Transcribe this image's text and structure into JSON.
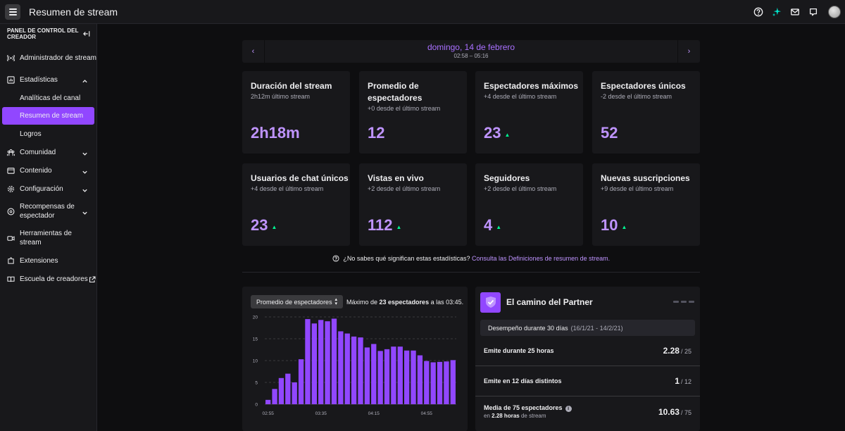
{
  "topbar": {
    "title": "Resumen de stream"
  },
  "sidebar": {
    "panel_title": "PANEL DE CONTROL DEL CREADOR",
    "items": [
      {
        "label": "Administrador de stream",
        "icon": "broadcast-icon"
      },
      {
        "label": "Estadísticas",
        "icon": "stats-icon",
        "expanded": true
      },
      {
        "label": "Analíticas del canal"
      },
      {
        "label": "Resumen de stream",
        "active": true
      },
      {
        "label": "Logros"
      },
      {
        "label": "Comunidad",
        "icon": "community-icon"
      },
      {
        "label": "Contenido",
        "icon": "content-icon"
      },
      {
        "label": "Configuración",
        "icon": "gear-icon"
      },
      {
        "label": "Recompensas de espectador",
        "icon": "rewards-icon"
      },
      {
        "label": "Herramientas de stream",
        "icon": "camera-icon"
      },
      {
        "label": "Extensiones",
        "icon": "puzzle-icon"
      },
      {
        "label": "Escuela de creadores",
        "icon": "book-icon"
      }
    ]
  },
  "date_nav": {
    "date": "domingo, 14 de febrero",
    "range": "02:58 – 05:16"
  },
  "cards": [
    {
      "title": "Duración del stream",
      "sub": "2h12m último stream",
      "value": "2h18m",
      "up": false
    },
    {
      "title": "Promedio de espectadores",
      "sub": "+0 desde el último stream",
      "value": "12",
      "up": false
    },
    {
      "title": "Espectadores máximos",
      "sub": "+4 desde el último stream",
      "value": "23",
      "up": true
    },
    {
      "title": "Espectadores únicos",
      "sub": "-2 desde el último stream",
      "value": "52",
      "up": false
    },
    {
      "title": "Usuarios de chat únicos",
      "sub": "+4 desde el último stream",
      "value": "23",
      "up": true
    },
    {
      "title": "Vistas en vivo",
      "sub": "+2 desde el último stream",
      "value": "112",
      "up": true
    },
    {
      "title": "Seguidores",
      "sub": "+2 desde el último stream",
      "value": "4",
      "up": true
    },
    {
      "title": "Nuevas suscripciones",
      "sub": "+9 desde el último stream",
      "value": "10",
      "up": true
    }
  ],
  "help": {
    "question": "¿No sabes qué significan estas estadísticas?",
    "link": "Consulta las Definiciones de resumen de stream."
  },
  "chart_panel": {
    "select_value": "Promedio de espectadores",
    "max_prefix": "Máximo de",
    "max_bold": "23 espectadores",
    "max_suffix": "a las 03:45."
  },
  "chart_data": {
    "type": "bar",
    "ylim": [
      0,
      20
    ],
    "yticks": [
      "0",
      "5",
      "10",
      "15",
      "20"
    ],
    "xticks": [
      "02:55",
      "03:35",
      "04:15",
      "04:55"
    ],
    "values": [
      1,
      3.5,
      6,
      7,
      5,
      10.3,
      19.5,
      18.5,
      19.3,
      19,
      19.6,
      16.7,
      16.2,
      15.5,
      15.3,
      13,
      13.8,
      12.2,
      12.6,
      13.2,
      13.2,
      12.3,
      12.3,
      11.2,
      9.9,
      9.6,
      9.7,
      9.8,
      10.1
    ],
    "color": "#9147ff"
  },
  "partner": {
    "title": "El camino del Partner",
    "perf_label": "Desempeño durante 30 días",
    "perf_range": "(16/1/21 - 14/2/21)",
    "rows": [
      {
        "label": "Emite durante 25 horas",
        "value": "2.28",
        "den": "/ 25"
      },
      {
        "label": "Emite en 12 días distintos",
        "value": "1",
        "den": "/ 12"
      },
      {
        "label": "Media de 75 espectadores",
        "small_prefix": "en",
        "small_bold": "2.28 horas",
        "small_suffix": "de stream",
        "value": "10.63",
        "den": "/ 75"
      }
    ]
  },
  "colors": {
    "accent": "#9147ff",
    "accent_text": "#bf94ff",
    "up": "#00f593",
    "bg": "#0e0e10",
    "panel": "#18181b"
  }
}
